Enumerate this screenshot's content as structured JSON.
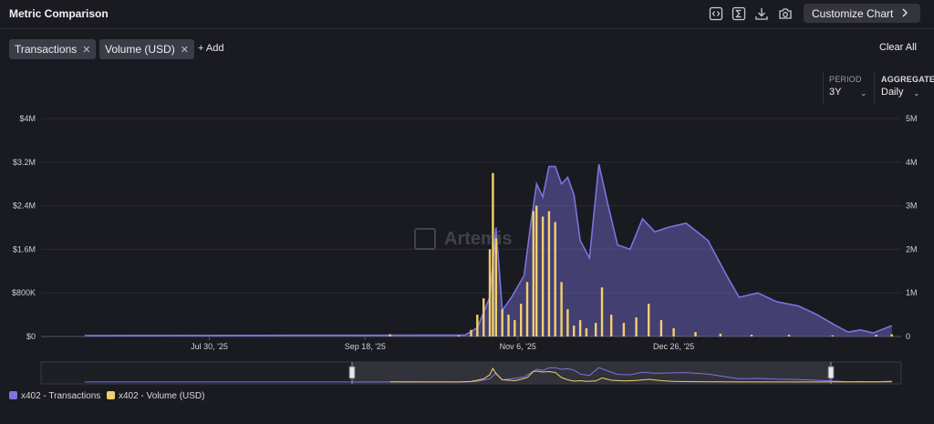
{
  "header": {
    "title": "Metric Comparison",
    "customize_label": "Customize Chart",
    "icons": [
      "embed-icon",
      "sigma-icon",
      "download-icon",
      "camera-icon",
      "chevron-right-icon"
    ]
  },
  "metrics": {
    "chips": [
      {
        "label": "Transactions"
      },
      {
        "label": "Volume (USD)"
      }
    ],
    "add_label": "+ Add",
    "clear_label": "Clear All"
  },
  "controls": {
    "period_label": "PERIOD",
    "period_value": "3Y",
    "aggregate_label": "AGGREGATE",
    "aggregate_value": "Daily"
  },
  "watermark": "Artemis",
  "colors": {
    "transactions": "#7b73e0",
    "volume": "#f2cf6d",
    "background": "#1a1a21"
  },
  "chart_data": {
    "type": "area",
    "x_ticks": [
      "Jul 30, '25",
      "Sep 18, '25",
      "Nov 6, '25",
      "Dec 26, '25"
    ],
    "y_left": {
      "ticks": [
        "$0",
        "$800K",
        "$1.6M",
        "$2.4M",
        "$3.2M",
        "$4M"
      ],
      "ylim": [
        0,
        4000000
      ]
    },
    "y_right": {
      "ticks": [
        "0",
        "1M",
        "2M",
        "3M",
        "4M",
        "5M"
      ],
      "ylim": [
        0,
        5000000
      ]
    },
    "grid": true,
    "legend_position": "bottom-left",
    "series": [
      {
        "name": "x402 - Transactions",
        "type": "area",
        "axis": "right",
        "points": [
          [
            "2025-06-20",
            20000
          ],
          [
            "2025-10-20",
            30000
          ],
          [
            "2025-10-24",
            200000
          ],
          [
            "2025-10-28",
            900000
          ],
          [
            "2025-10-30",
            2500000
          ],
          [
            "2025-11-01",
            600000
          ],
          [
            "2025-11-04",
            900000
          ],
          [
            "2025-11-08",
            1400000
          ],
          [
            "2025-11-10",
            2500000
          ],
          [
            "2025-11-12",
            3500000
          ],
          [
            "2025-11-14",
            3200000
          ],
          [
            "2025-11-16",
            3900000
          ],
          [
            "2025-11-18",
            3900000
          ],
          [
            "2025-11-20",
            3500000
          ],
          [
            "2025-11-22",
            3650000
          ],
          [
            "2025-11-24",
            3250000
          ],
          [
            "2025-11-26",
            2200000
          ],
          [
            "2025-11-29",
            1800000
          ],
          [
            "2025-12-02",
            3950000
          ],
          [
            "2025-12-05",
            3000000
          ],
          [
            "2025-12-08",
            2100000
          ],
          [
            "2025-12-12",
            2000000
          ],
          [
            "2025-12-16",
            2700000
          ],
          [
            "2025-12-20",
            2400000
          ],
          [
            "2025-12-24",
            2500000
          ],
          [
            "2025-12-30",
            2600000
          ],
          [
            "2026-01-06",
            2200000
          ],
          [
            "2026-01-12",
            1400000
          ],
          [
            "2026-01-16",
            900000
          ],
          [
            "2026-01-22",
            1000000
          ],
          [
            "2026-01-28",
            800000
          ],
          [
            "2026-02-04",
            700000
          ],
          [
            "2026-02-10",
            500000
          ],
          [
            "2026-02-16",
            250000
          ],
          [
            "2026-02-20",
            100000
          ],
          [
            "2026-02-24",
            150000
          ],
          [
            "2026-02-28",
            80000
          ],
          [
            "2026-03-06",
            250000
          ]
        ]
      },
      {
        "name": "x402 - Volume (USD)",
        "type": "bar",
        "axis": "left",
        "points": [
          [
            "2025-09-26",
            40000
          ],
          [
            "2025-10-18",
            20000
          ],
          [
            "2025-10-22",
            120000
          ],
          [
            "2025-10-24",
            400000
          ],
          [
            "2025-10-26",
            700000
          ],
          [
            "2025-10-28",
            1600000
          ],
          [
            "2025-10-29",
            3000000
          ],
          [
            "2025-10-30",
            1800000
          ],
          [
            "2025-11-01",
            500000
          ],
          [
            "2025-11-03",
            400000
          ],
          [
            "2025-11-05",
            300000
          ],
          [
            "2025-11-07",
            600000
          ],
          [
            "2025-11-09",
            1000000
          ],
          [
            "2025-11-11",
            2300000
          ],
          [
            "2025-11-12",
            2400000
          ],
          [
            "2025-11-14",
            2200000
          ],
          [
            "2025-11-16",
            2300000
          ],
          [
            "2025-11-18",
            2100000
          ],
          [
            "2025-11-20",
            1000000
          ],
          [
            "2025-11-22",
            500000
          ],
          [
            "2025-11-24",
            200000
          ],
          [
            "2025-11-26",
            300000
          ],
          [
            "2025-11-28",
            150000
          ],
          [
            "2025-12-01",
            250000
          ],
          [
            "2025-12-03",
            900000
          ],
          [
            "2025-12-06",
            400000
          ],
          [
            "2025-12-10",
            250000
          ],
          [
            "2025-12-14",
            350000
          ],
          [
            "2025-12-18",
            600000
          ],
          [
            "2025-12-22",
            300000
          ],
          [
            "2025-12-26",
            150000
          ],
          [
            "2026-01-02",
            80000
          ],
          [
            "2026-01-10",
            50000
          ],
          [
            "2026-01-20",
            30000
          ],
          [
            "2026-02-01",
            30000
          ],
          [
            "2026-02-15",
            20000
          ],
          [
            "2026-03-01",
            30000
          ],
          [
            "2026-03-06",
            40000
          ]
        ]
      }
    ]
  }
}
